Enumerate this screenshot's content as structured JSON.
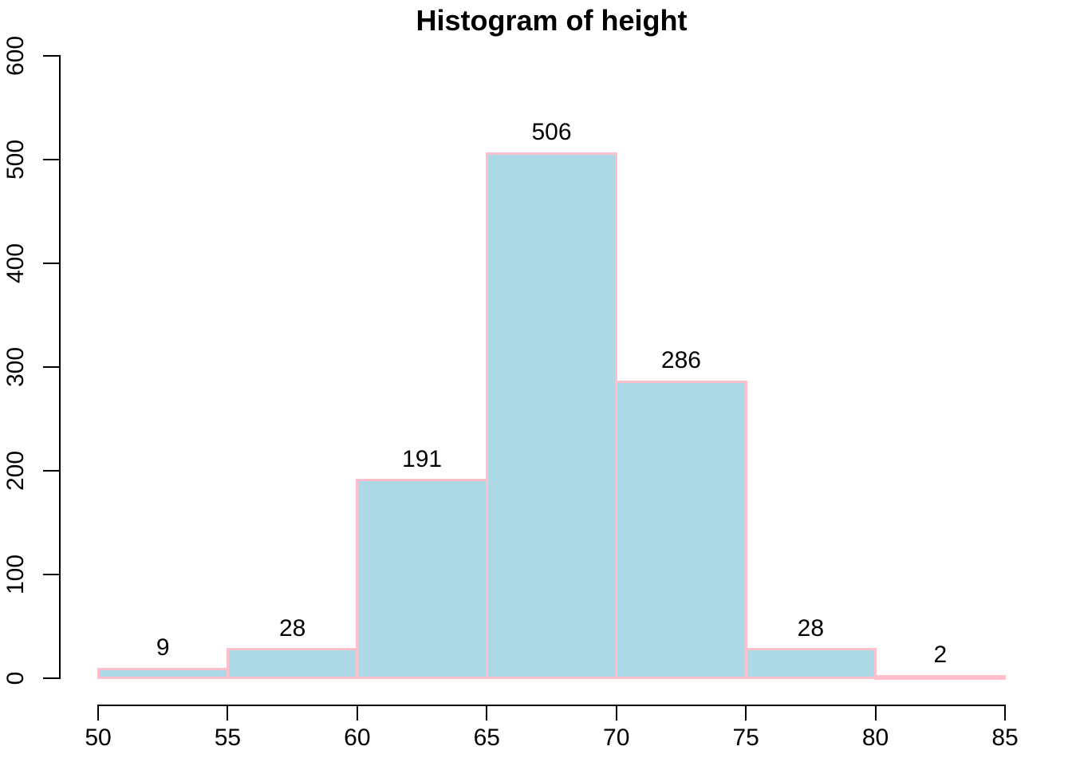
{
  "chart": {
    "title": "Histogram of height",
    "colors": {
      "bar_fill": "#ADD8E6",
      "bar_border": "#FFC0CB",
      "axis": "#000000",
      "text": "#000000",
      "background": "#FFFFFF"
    }
  },
  "chart_data": {
    "type": "bar",
    "subtype": "histogram",
    "title": "Histogram of height",
    "xlabel": "",
    "ylabel": "",
    "breaks": [
      50,
      55,
      60,
      65,
      70,
      75,
      80,
      85
    ],
    "counts": [
      9,
      28,
      191,
      506,
      286,
      28,
      2
    ],
    "bar_labels": [
      "9",
      "28",
      "191",
      "506",
      "286",
      "28",
      "2"
    ],
    "x_ticks": [
      "50",
      "55",
      "60",
      "65",
      "70",
      "75",
      "80",
      "85"
    ],
    "y_ticks": [
      "0",
      "100",
      "200",
      "300",
      "400",
      "500",
      "600"
    ],
    "xlim": [
      50,
      85
    ],
    "ylim": [
      0,
      600
    ],
    "grid": false,
    "legend": null
  }
}
